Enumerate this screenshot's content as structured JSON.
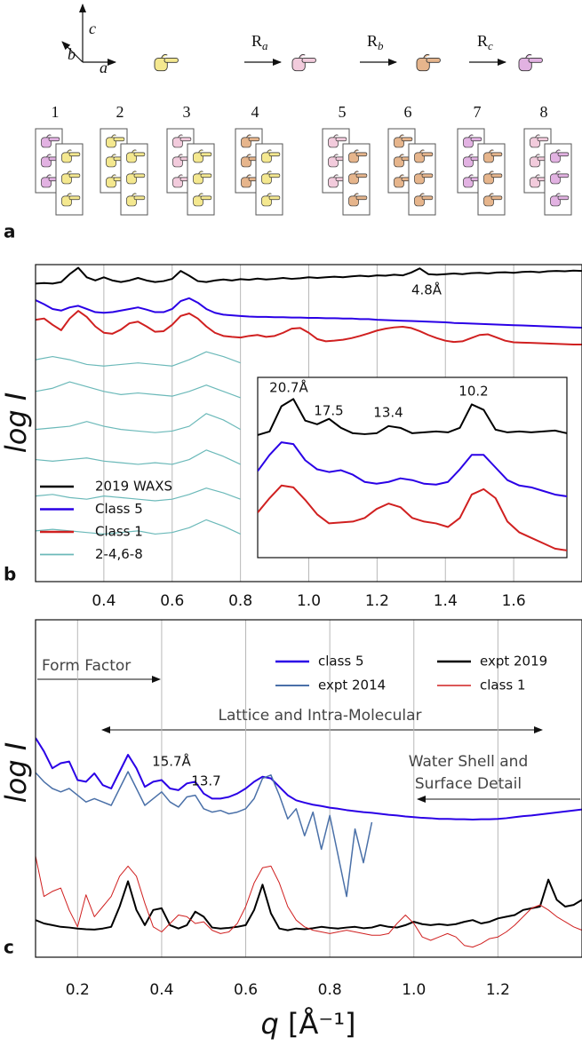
{
  "panel_labels": [
    "a",
    "b",
    "c"
  ],
  "diagram": {
    "axes": [
      "c",
      "b",
      "a"
    ],
    "rotations": [
      {
        "symbol": "R",
        "subscript": "a"
      },
      {
        "symbol": "R",
        "subscript": "b"
      },
      {
        "symbol": "R",
        "subscript": "c"
      }
    ],
    "arrangements": [
      1,
      2,
      3,
      4,
      5,
      6,
      7,
      8
    ]
  },
  "chart_data": [
    {
      "type": "line",
      "ylabel": "log I",
      "xlim": [
        0.2,
        1.8
      ],
      "ylim": [
        0,
        100
      ],
      "xticks": [
        0.4,
        0.6,
        0.8,
        {
          "value": 1,
          "label": "1.0"
        },
        1.2,
        1.4,
        1.6
      ],
      "grid": true,
      "legend": "lower left",
      "x": [
        0.2,
        0.225,
        0.25,
        0.275,
        0.3,
        0.325,
        0.35,
        0.375,
        0.4,
        0.425,
        0.45,
        0.475,
        0.5,
        0.525,
        0.55,
        0.575,
        0.6,
        0.625,
        0.65,
        0.675,
        0.7,
        0.725,
        0.75,
        0.775,
        0.8,
        0.825,
        0.85,
        0.875,
        0.9,
        0.925,
        0.95,
        0.975,
        1.0,
        1.025,
        1.05,
        1.075,
        1.1,
        1.125,
        1.15,
        1.175,
        1.2,
        1.225,
        1.25,
        1.275,
        1.3,
        1.325,
        1.35,
        1.375,
        1.4,
        1.425,
        1.45,
        1.475,
        1.5,
        1.525,
        1.55,
        1.575,
        1.6,
        1.625,
        1.65,
        1.675,
        1.7,
        1.725,
        1.75,
        1.775,
        1.8
      ],
      "series": [
        {
          "name": "2019 WAXS",
          "color": "#000000",
          "linewidth": 2,
          "values": [
            94,
            94.2,
            94,
            94.5,
            97,
            99,
            96,
            95,
            96,
            95,
            94.5,
            95,
            95.8,
            95,
            94.5,
            94.8,
            95.5,
            98,
            96.5,
            94.8,
            94.5,
            95,
            95.3,
            95,
            95.4,
            95.2,
            95.6,
            95.3,
            95.5,
            95.8,
            95.5,
            95.7,
            96,
            95.8,
            96,
            96.2,
            96,
            96.3,
            96.5,
            96.3,
            96.6,
            96.5,
            96.8,
            96.6,
            97.5,
            98.8,
            97,
            96.8,
            97,
            97.2,
            97,
            97.3,
            97.4,
            97.2,
            97.5,
            97.6,
            97.4,
            97.7,
            97.8,
            97.6,
            97.9,
            98,
            97.9,
            98.1,
            98
          ]
        },
        {
          "name": "Class 5",
          "color": "#2a00e6",
          "linewidth": 2,
          "values": [
            88.8,
            87.5,
            86,
            85.5,
            86.5,
            87,
            86,
            85,
            84.8,
            85,
            85.5,
            86,
            86.5,
            85.8,
            85,
            85,
            86,
            88.5,
            89.4,
            88,
            86,
            84.8,
            84.2,
            84,
            83.8,
            83.6,
            83.5,
            83.5,
            83.4,
            83.4,
            83.3,
            83.3,
            83.2,
            83.2,
            83.1,
            83.1,
            83,
            83,
            82.8,
            82.8,
            82.6,
            82.5,
            82.4,
            82.3,
            82.2,
            82.1,
            82,
            81.9,
            81.8,
            81.6,
            81.5,
            81.4,
            81.3,
            81.2,
            81.1,
            81,
            80.9,
            80.8,
            80.7,
            80.6,
            80.5,
            80.4,
            80.3,
            80.2,
            80.1
          ]
        },
        {
          "name": "Class 1",
          "color": "#d02020",
          "linewidth": 2,
          "values": [
            82.6,
            83,
            81,
            79.3,
            83,
            85.4,
            83.5,
            80.5,
            78.5,
            78.2,
            79.5,
            81.5,
            82,
            80.5,
            78.8,
            79,
            81,
            83.8,
            84.6,
            83,
            80.5,
            78.5,
            77.5,
            77.2,
            77,
            77.5,
            77.8,
            77.2,
            77.5,
            78.5,
            79.8,
            80,
            78.5,
            76.5,
            75.8,
            76,
            76.3,
            76.8,
            77.5,
            78.3,
            79.2,
            79.8,
            80.2,
            80.4,
            80,
            79,
            77.8,
            76.8,
            76,
            75.6,
            75.8,
            76.8,
            77.8,
            78,
            77,
            76,
            75.5,
            75.4,
            75.3,
            75.2,
            75.1,
            75,
            74.9,
            74.8,
            74.8
          ]
        },
        {
          "name": "2-4,6-8",
          "color": "#6bb9b9",
          "linewidth": 1.2,
          "x": [
            0.2,
            0.25,
            0.3,
            0.35,
            0.4,
            0.45,
            0.5,
            0.55,
            0.6,
            0.65,
            0.7,
            0.75,
            0.8
          ],
          "values": [
            [
              70,
              71,
              70,
              68.5,
              68,
              68.5,
              69,
              68.5,
              68,
              70,
              72.5,
              71,
              69
            ],
            [
              60,
              61,
              63,
              61.5,
              60,
              59,
              59.5,
              59,
              58.5,
              60,
              62,
              60,
              58
            ],
            [
              48,
              48.5,
              49,
              50.5,
              49,
              48,
              47.5,
              47,
              47.5,
              49,
              53,
              51,
              48
            ],
            [
              38.5,
              38,
              38.5,
              39,
              38,
              37.5,
              37,
              37.5,
              37,
              38.5,
              41.5,
              39.5,
              37
            ],
            [
              27,
              27.5,
              26.5,
              26,
              27,
              26.5,
              26,
              25.5,
              26,
              27.5,
              29.5,
              28,
              26
            ],
            [
              16,
              16.5,
              16,
              15.5,
              15,
              15.5,
              16,
              15,
              15.5,
              17,
              19.5,
              17.5,
              15
            ]
          ]
        }
      ],
      "annotations": [
        "4.8Å"
      ]
    },
    {
      "type": "line",
      "xlim": [
        0.25,
        0.77
      ],
      "ylim": [
        0,
        100
      ],
      "x": [
        0.25,
        0.27,
        0.29,
        0.31,
        0.33,
        0.35,
        0.37,
        0.39,
        0.41,
        0.43,
        0.45,
        0.47,
        0.49,
        0.51,
        0.53,
        0.55,
        0.57,
        0.59,
        0.61,
        0.63,
        0.65,
        0.67,
        0.69,
        0.71,
        0.73,
        0.75,
        0.77
      ],
      "series": [
        {
          "color": "#000000",
          "linewidth": 2,
          "values": [
            68,
            70,
            84,
            88,
            76,
            74,
            77,
            72,
            69,
            68.5,
            69,
            73,
            72,
            69,
            69.5,
            70,
            69.5,
            72,
            85,
            82,
            71,
            69.5,
            70,
            69.5,
            70,
            70.5,
            69
          ]
        },
        {
          "color": "#2a00e6",
          "linewidth": 2,
          "values": [
            48,
            57,
            64,
            63,
            54,
            49,
            47.5,
            48.5,
            46,
            42,
            41,
            42,
            44,
            43,
            41,
            40.5,
            42,
            49,
            57,
            57,
            50,
            43,
            40,
            39,
            37,
            35,
            34
          ]
        },
        {
          "color": "#d02020",
          "linewidth": 2,
          "values": [
            25,
            33,
            40,
            39,
            32,
            24,
            19,
            19.5,
            20,
            22,
            27,
            30,
            28,
            22,
            20,
            19,
            17,
            22,
            35,
            38,
            33,
            20,
            14,
            11,
            8,
            5,
            4
          ]
        }
      ],
      "annotations": [
        "20.7Å",
        "17.5",
        "13.4",
        "10.2"
      ]
    },
    {
      "type": "line",
      "ylabel": "log I",
      "xlabel": {
        "variable": "q",
        "unit": "[Å⁻¹]"
      },
      "xlim": [
        0.1,
        1.4
      ],
      "ylim": [
        0,
        100
      ],
      "xticks": [
        0.2,
        0.4,
        0.6,
        0.8,
        {
          "value": 1,
          "label": "1.0"
        },
        1.2
      ],
      "grid": true,
      "legend": "upper right",
      "x": [
        0.1,
        0.12,
        0.14,
        0.16,
        0.18,
        0.2,
        0.22,
        0.24,
        0.26,
        0.28,
        0.3,
        0.32,
        0.34,
        0.36,
        0.38,
        0.4,
        0.42,
        0.44,
        0.46,
        0.48,
        0.5,
        0.52,
        0.54,
        0.56,
        0.58,
        0.6,
        0.62,
        0.64,
        0.66,
        0.68,
        0.7,
        0.72,
        0.74,
        0.76,
        0.78,
        0.8,
        0.82,
        0.84,
        0.86,
        0.88,
        0.9,
        0.92,
        0.94,
        0.96,
        0.98,
        1.0,
        1.02,
        1.04,
        1.06,
        1.08,
        1.1,
        1.12,
        1.14,
        1.16,
        1.18,
        1.2,
        1.22,
        1.24,
        1.26,
        1.28,
        1.3,
        1.32,
        1.34,
        1.36,
        1.38,
        1.4
      ],
      "series": [
        {
          "name": "class 5",
          "color": "#2a00e6",
          "linewidth": 2,
          "values": [
            65,
            61,
            56,
            57.5,
            58,
            52.5,
            52,
            54.5,
            51,
            50,
            55,
            60,
            56,
            50.5,
            52,
            52.5,
            50,
            49.5,
            51.5,
            52,
            48.5,
            47,
            47,
            47.5,
            48.5,
            50,
            52,
            53.5,
            53,
            50.5,
            48,
            46.5,
            45.8,
            45.2,
            44.8,
            44.3,
            44,
            43.6,
            43.3,
            43,
            42.8,
            42.5,
            42.2,
            42,
            41.7,
            41.5,
            41.3,
            41.2,
            41,
            41,
            40.9,
            40.9,
            40.8,
            40.9,
            40.9,
            41,
            41.2,
            41.5,
            41.8,
            42,
            42.3,
            42.6,
            42.9,
            43.2,
            43.5,
            43.8
          ]
        },
        {
          "name": "expt 2014",
          "color": "#4a70a8",
          "linewidth": 1.5,
          "values": [
            54.7,
            52,
            50,
            49,
            50,
            48,
            46,
            47,
            46,
            45,
            50,
            55,
            50,
            45,
            47,
            49,
            46,
            44.5,
            47.5,
            48,
            44,
            43,
            43.5,
            42.5,
            43,
            44,
            47,
            53,
            54,
            48,
            41,
            44,
            36,
            43,
            32,
            42,
            30,
            18,
            38,
            28,
            40,
            null,
            null,
            null,
            null,
            null,
            null,
            null,
            null,
            null,
            null,
            null,
            null,
            null,
            null,
            null,
            null,
            null,
            null,
            null,
            null,
            null,
            null,
            null,
            null,
            null
          ]
        },
        {
          "name": "expt 2019",
          "color": "#000000",
          "linewidth": 2,
          "values": [
            11,
            10,
            9.5,
            9,
            8.8,
            8.5,
            8.3,
            8.2,
            8.5,
            9,
            15,
            22.5,
            14,
            9.5,
            14,
            14.5,
            9.5,
            8.5,
            9.5,
            13.5,
            12,
            8.8,
            8.5,
            8.7,
            9,
            9.5,
            14,
            21.5,
            13,
            8.5,
            8,
            8.5,
            8.3,
            8.6,
            9,
            8.7,
            8.5,
            8.8,
            9,
            8.6,
            8.8,
            9.5,
            9,
            8.8,
            9.5,
            10.5,
            9.8,
            9.5,
            9.8,
            9.5,
            9.8,
            10.5,
            11,
            10,
            10.5,
            11.5,
            12,
            12.5,
            14,
            14.5,
            15,
            23,
            17,
            15,
            15.5,
            17
          ]
        },
        {
          "name": "class 1",
          "color": "#d02020",
          "linewidth": 1,
          "values": [
            30,
            18,
            19.5,
            20.5,
            14,
            9,
            18.5,
            12,
            15,
            18,
            24,
            27,
            24,
            16,
            9,
            7.5,
            10,
            12.5,
            12,
            10,
            10.5,
            8,
            7,
            7.5,
            10,
            15,
            22,
            26.5,
            27,
            22,
            15,
            11,
            9,
            8,
            7.5,
            7,
            7.5,
            8,
            7.5,
            7,
            6.5,
            6.5,
            7,
            10,
            12.5,
            10,
            6,
            5,
            6,
            7,
            6,
            3.5,
            3,
            4,
            5.5,
            6,
            7.5,
            9.5,
            12,
            14.5,
            15.5,
            14,
            12,
            10.5,
            9,
            8
          ]
        }
      ],
      "annotations": [
        "Form Factor",
        "Lattice and Intra-Molecular",
        "15.7Å",
        "13.7",
        "Water Shell and",
        "Surface Detail"
      ]
    }
  ]
}
